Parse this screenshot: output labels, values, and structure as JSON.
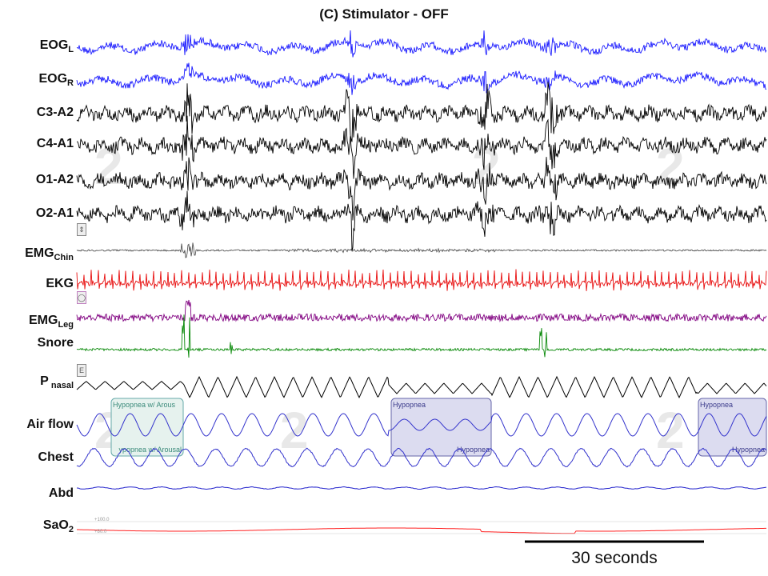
{
  "chart_data": {
    "type": "line",
    "title": "(C) Stimulator - OFF",
    "series": [
      {
        "name": "EOG",
        "subscript": "L",
        "color": "#1a1aff"
      },
      {
        "name": "EOG",
        "subscript": "R",
        "color": "#1a1aff"
      },
      {
        "name": "C3-A2",
        "subscript": "",
        "color": "#000000"
      },
      {
        "name": "C4-A1",
        "subscript": "",
        "color": "#000000"
      },
      {
        "name": "O1-A2",
        "subscript": "",
        "color": "#000000"
      },
      {
        "name": "O2-A1",
        "subscript": "",
        "color": "#000000"
      },
      {
        "name": "EMG",
        "subscript": "Chin",
        "color": "#555555"
      },
      {
        "name": "EKG",
        "subscript": "",
        "color": "#e81010"
      },
      {
        "name": "EMG",
        "subscript": "Leg",
        "color": "#800080"
      },
      {
        "name": "Snore",
        "subscript": "",
        "color": "#0a8a0a"
      },
      {
        "name": "P",
        "subscript": "nasal",
        "color": "#000000"
      },
      {
        "name": "Air flow",
        "subscript": "",
        "color": "#3333cc"
      },
      {
        "name": "Chest",
        "subscript": "",
        "color": "#3333cc"
      },
      {
        "name": "Abd",
        "subscript": "",
        "color": "#2222cc"
      },
      {
        "name": "SaO",
        "subscript": "2",
        "color": "#ff2020"
      }
    ],
    "events": [
      {
        "label_top": "Hypopnea w/ Arous",
        "label_bottom": "ypopnea w/ Arousal",
        "type": "arousal"
      },
      {
        "label_top": "Hypopnea",
        "label_bottom": "Hypopnea",
        "type": "hypopnea"
      },
      {
        "label_top": "Hypopnea",
        "label_bottom": "Hypopnea",
        "type": "hypopnea"
      }
    ],
    "sao2_scale_labels": [
      "+100.0",
      "+80.0"
    ],
    "scale_bar": {
      "label": "30 seconds",
      "duration_s": 30
    }
  },
  "colors": {
    "eog": "#1a1aff",
    "eeg": "#000000",
    "ekg": "#e81010",
    "emg_leg": "#800080",
    "snore": "#0a8a0a",
    "resp": "#3333cc",
    "sao2": "#ff2020",
    "event_hypopnea": "#dcdcf0",
    "event_arousal": "#e6f2ee"
  }
}
